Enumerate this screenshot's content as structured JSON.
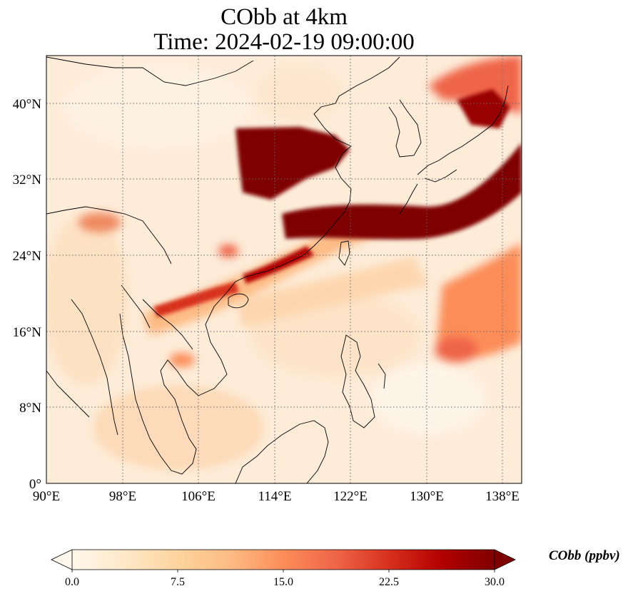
{
  "title": {
    "line1": "CObb at 4km",
    "line2": "Time: 2024-02-19 09:00:00"
  },
  "map": {
    "lon_range": [
      90,
      140
    ],
    "lat_range": [
      0,
      45
    ],
    "lon_ticks": [
      "90°E",
      "98°E",
      "106°E",
      "114°E",
      "122°E",
      "130°E",
      "138°E"
    ],
    "lon_tick_values": [
      90,
      98,
      106,
      114,
      122,
      130,
      138
    ],
    "lat_ticks": [
      "0°",
      "8°N",
      "16°N",
      "24°N",
      "32°N",
      "40°N"
    ],
    "lat_tick_values": [
      0,
      8,
      16,
      24,
      32,
      40
    ],
    "gridlines": "dotted",
    "colormap": "OrRd"
  },
  "colorbar": {
    "label": "CObb (ppbv)",
    "min": 0.0,
    "max": 30.0,
    "ticks": [
      "0.0",
      "7.5",
      "15.0",
      "22.5",
      "30.0"
    ],
    "extend": "both",
    "colors": [
      "#fff7ec",
      "#fee8c8",
      "#fdd49e",
      "#fdbb84",
      "#fc8d59",
      "#ef6548",
      "#d7301f",
      "#b30000",
      "#7f0000"
    ]
  }
}
